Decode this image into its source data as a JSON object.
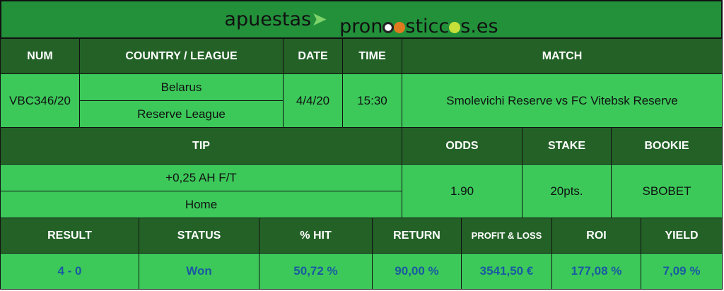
{
  "logo": {
    "part1": "apuestas",
    "part2": "pron",
    "part3": "stic",
    "part4": "s.es"
  },
  "header1": {
    "num": "NUM",
    "country": "COUNTRY / LEAGUE",
    "date": "DATE",
    "time": "TIME",
    "match": "MATCH"
  },
  "row1": {
    "num": "VBC346/20",
    "country": "Belarus",
    "league": "Reserve League",
    "date": "4/4/20",
    "time": "15:30",
    "match": "Smolevichi Reserve vs FC Vitebsk Reserve"
  },
  "header2": {
    "tip": "TIP",
    "odds": "ODDS",
    "stake": "STAKE",
    "bookie": "BOOKIE"
  },
  "row2": {
    "tip": "+0,25 AH F/T",
    "pick": "Home",
    "odds": "1.90",
    "stake": "20pts.",
    "bookie": "SBOBET"
  },
  "header3": {
    "result": "RESULT",
    "status": "STATUS",
    "hit": "% HIT",
    "return": "RETURN",
    "pl": "PROFIT & LOSS",
    "roi": "ROI",
    "yield": "YIELD"
  },
  "row3": {
    "result": "4 - 0",
    "status": "Won",
    "hit": "50,72 %",
    "return": "90,00 %",
    "pl": "3541,50 €",
    "roi": "177,08 %",
    "yield": "7,09 %"
  },
  "colors": {
    "header": "#236127",
    "cell": "#3cc95a",
    "banner": "#22913a",
    "value_text": "#1a5aa0"
  }
}
